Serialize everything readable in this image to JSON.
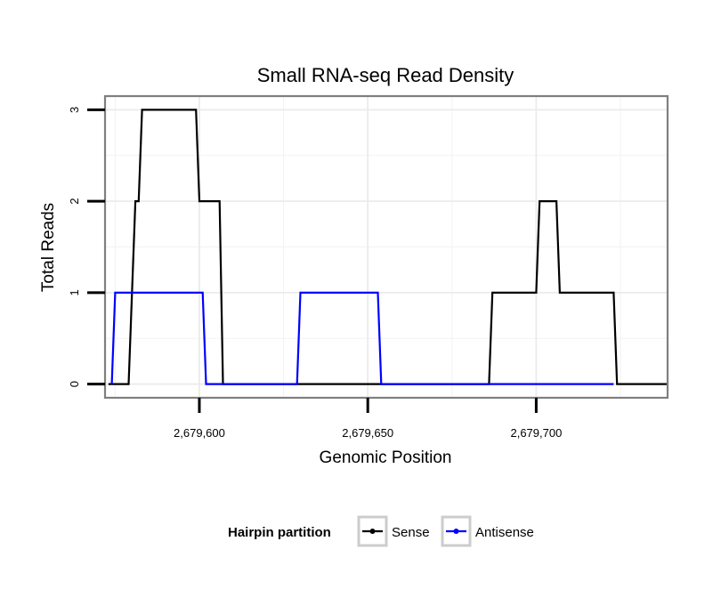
{
  "chart_data": {
    "type": "line",
    "title": "Small RNA-seq Read Density",
    "xlabel": "Genomic Position",
    "ylabel": "Total Reads",
    "xlim": [
      2679572,
      2679739
    ],
    "ylim": [
      -0.15,
      3.15
    ],
    "x_ticks": [
      2679600,
      2679650,
      2679700
    ],
    "x_tick_labels": [
      "2,679,600",
      "2,679,650",
      "2,679,700"
    ],
    "y_ticks": [
      0,
      1,
      2,
      3
    ],
    "y_tick_labels": [
      "0",
      "1",
      "2",
      "3"
    ],
    "x_minor_gridlines": [
      2679575,
      2679625,
      2679675,
      2679725
    ],
    "grid": true,
    "legend": {
      "title": "Hairpin partition",
      "position": "bottom"
    },
    "series": [
      {
        "name": "Sense",
        "color": "#000000",
        "x": [
          2679573,
          2679579,
          2679581,
          2679582,
          2679583,
          2679599,
          2679600,
          2679606,
          2679607,
          2679686,
          2679687,
          2679700,
          2679701,
          2679706,
          2679707,
          2679723,
          2679724,
          2679739
        ],
        "y": [
          0,
          0,
          2,
          2,
          3,
          3,
          2,
          2,
          0,
          0,
          1,
          1,
          2,
          2,
          1,
          1,
          0,
          0
        ]
      },
      {
        "name": "Antisense",
        "color": "#0000ff",
        "x": [
          2679574,
          2679575,
          2679601,
          2679602,
          2679629,
          2679630,
          2679653,
          2679654,
          2679723
        ],
        "y": [
          0,
          1,
          1,
          0,
          0,
          1,
          1,
          0,
          0
        ]
      }
    ]
  }
}
